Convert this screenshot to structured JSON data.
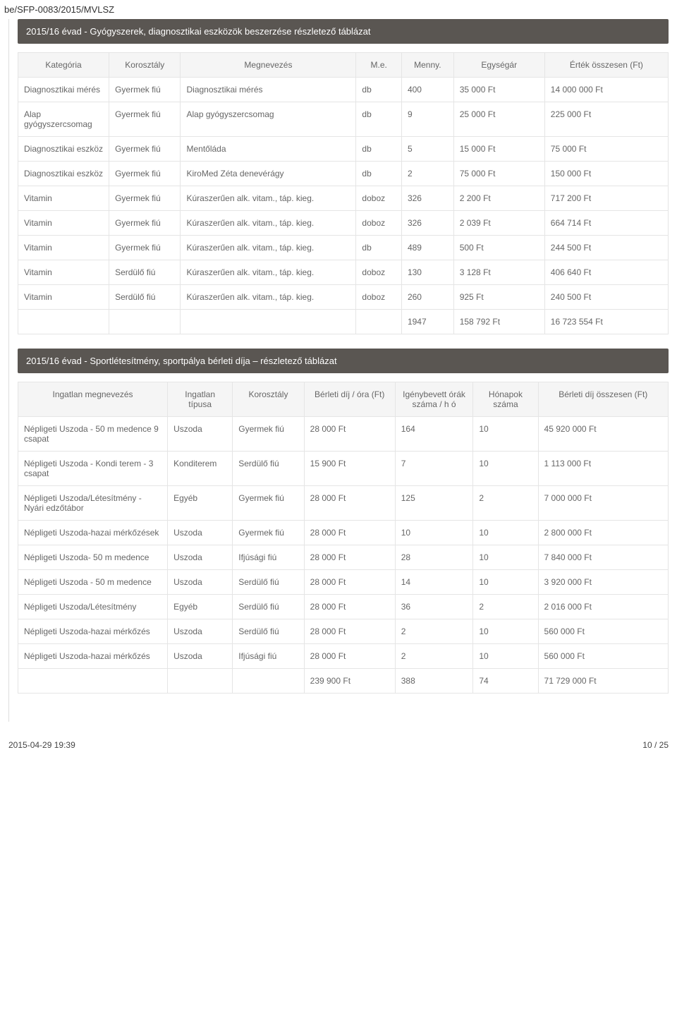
{
  "doc_id": "be/SFP-0083/2015/MVLSZ",
  "section1": {
    "title": "2015/16 évad - Gyógyszerek, diagnosztikai eszközök beszerzése részletező táblázat",
    "headers": [
      "Kategória",
      "Korosztály",
      "Megnevezés",
      "M.e.",
      "Menny.",
      "Egységár",
      "Érték összesen (Ft)"
    ],
    "rows": [
      [
        "Diagnosztikai mérés",
        "Gyermek fiú",
        "Diagnosztikai mérés",
        "db",
        "400",
        "35 000 Ft",
        "14 000 000 Ft"
      ],
      [
        "Alap gyógyszercsomag",
        "Gyermek fiú",
        "Alap gyógyszercsomag",
        "db",
        "9",
        "25 000 Ft",
        "225 000 Ft"
      ],
      [
        "Diagnosztikai eszköz",
        "Gyermek fiú",
        "Mentőláda",
        "db",
        "5",
        "15 000 Ft",
        "75 000 Ft"
      ],
      [
        "Diagnosztikai eszköz",
        "Gyermek fiú",
        "KiroMed Zéta denevérágy",
        "db",
        "2",
        "75 000 Ft",
        "150 000 Ft"
      ],
      [
        "Vitamin",
        "Gyermek fiú",
        "Kúraszerűen alk. vitam., táp. kieg.",
        "doboz",
        "326",
        "2 200 Ft",
        "717 200 Ft"
      ],
      [
        "Vitamin",
        "Gyermek fiú",
        "Kúraszerűen alk. vitam., táp. kieg.",
        "doboz",
        "326",
        "2 039 Ft",
        "664 714 Ft"
      ],
      [
        "Vitamin",
        "Gyermek fiú",
        "Kúraszerűen alk. vitam., táp. kieg.",
        "db",
        "489",
        "500 Ft",
        "244 500 Ft"
      ],
      [
        "Vitamin",
        "Serdülő fiú",
        "Kúraszerűen alk. vitam., táp. kieg.",
        "doboz",
        "130",
        "3 128 Ft",
        "406 640 Ft"
      ],
      [
        "Vitamin",
        "Serdülő fiú",
        "Kúraszerűen alk. vitam., táp. kieg.",
        "doboz",
        "260",
        "925 Ft",
        "240 500 Ft"
      ]
    ],
    "total": [
      "",
      "",
      "",
      "",
      "1947",
      "158 792 Ft",
      "16 723 554 Ft"
    ]
  },
  "section2": {
    "title": "2015/16 évad - Sportlétesítmény, sportpálya bérleti díja – részletező táblázat",
    "headers": [
      "Ingatlan megnevezés",
      "Ingatlan típusa",
      "Korosztály",
      "Bérleti díj / óra (Ft)",
      "Igénybevett órák száma / h ó",
      "Hónapok száma",
      "Bérleti díj összesen (Ft)"
    ],
    "rows": [
      [
        "Népligeti Uszoda - 50 m medence 9 csapat",
        "Uszoda",
        "Gyermek fiú",
        "28 000 Ft",
        "164",
        "10",
        "45 920 000 Ft"
      ],
      [
        "Népligeti Uszoda - Kondi terem - 3 csapat",
        "Konditerem",
        "Serdülő fiú",
        "15 900 Ft",
        "7",
        "10",
        "1 113 000 Ft"
      ],
      [
        "Népligeti Uszoda/Létesítmény - Nyári edzőtábor",
        "Egyéb",
        "Gyermek fiú",
        "28 000 Ft",
        "125",
        "2",
        "7 000 000 Ft"
      ],
      [
        "Népligeti Uszoda-hazai mérkőzések",
        "Uszoda",
        "Gyermek fiú",
        "28 000 Ft",
        "10",
        "10",
        "2 800 000 Ft"
      ],
      [
        "Népligeti Uszoda- 50 m medence",
        "Uszoda",
        "Ifjúsági fiú",
        "28 000 Ft",
        "28",
        "10",
        "7 840 000 Ft"
      ],
      [
        "Népligeti Uszoda - 50 m medence",
        "Uszoda",
        "Serdülő fiú",
        "28 000 Ft",
        "14",
        "10",
        "3 920 000 Ft"
      ],
      [
        "Népligeti Uszoda/Létesítmény",
        "Egyéb",
        "Serdülő fiú",
        "28 000 Ft",
        "36",
        "2",
        "2 016 000 Ft"
      ],
      [
        "Népligeti Uszoda-hazai mérkőzés",
        "Uszoda",
        "Serdülő fiú",
        "28 000 Ft",
        "2",
        "10",
        "560 000 Ft"
      ],
      [
        "Népligeti Uszoda-hazai mérkőzés",
        "Uszoda",
        "Ifjúsági fiú",
        "28 000 Ft",
        "2",
        "10",
        "560 000 Ft"
      ]
    ],
    "total": [
      "",
      "",
      "",
      "239 900 Ft",
      "388",
      "74",
      "71 729 000 Ft"
    ]
  },
  "footer": {
    "timestamp": "2015-04-29 19:39",
    "page": "10 / 25"
  },
  "colors": {
    "header_bg": "#5a5652",
    "header_text": "#ffffff",
    "th_bg": "#f5f5f5",
    "border": "#e5e5e5",
    "text": "#666666"
  }
}
